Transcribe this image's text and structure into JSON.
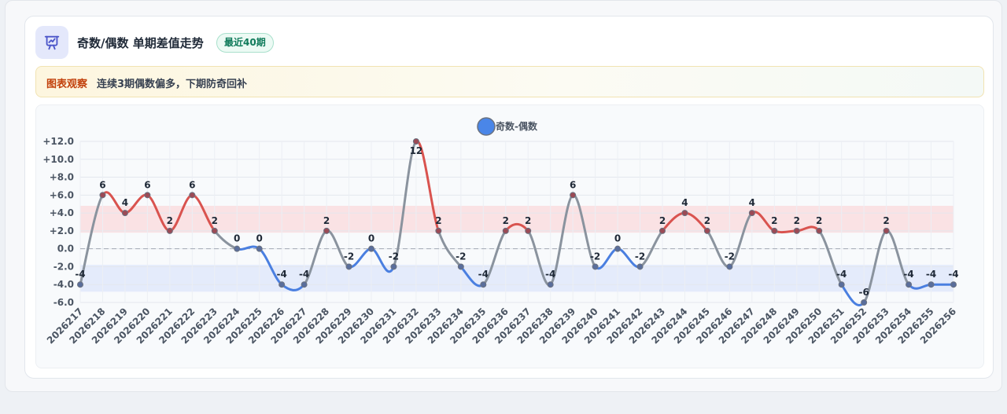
{
  "header": {
    "icon": "chart-presentation-icon",
    "title": "奇数/偶数 单期差值走势",
    "badge": "最近40期"
  },
  "observation": {
    "label": "图表观察",
    "text": "连续3期偶数偏多，下期防奇回补"
  },
  "colors": {
    "positive": "#d9534f",
    "negative": "#4a7fe0",
    "neutral": "#8a939e",
    "positive_band": "#fbd9dc",
    "negative_band": "#dde6fb",
    "legend_dot": "#4a86e8"
  },
  "chart_data": {
    "type": "line",
    "legend": [
      "奇数-偶数"
    ],
    "legend_position": "top-center",
    "grid": true,
    "ylim": [
      -6,
      12
    ],
    "yticks": [
      -6,
      -4,
      -2,
      0,
      2,
      4,
      6,
      8,
      10,
      12
    ],
    "ytick_labels": [
      "-6.0",
      "-4.0",
      "-2.0",
      "0.0",
      "+2.0",
      "+4.0",
      "+6.0",
      "+8.0",
      "+10.0",
      "+12.0"
    ],
    "x": [
      "2026217",
      "2026218",
      "2026219",
      "2026220",
      "2026221",
      "2026222",
      "2026223",
      "2026224",
      "2026225",
      "2026226",
      "2026227",
      "2026228",
      "2026229",
      "2026230",
      "2026231",
      "2026232",
      "2026233",
      "2026234",
      "2026235",
      "2026236",
      "2026237",
      "2026238",
      "2026239",
      "2026240",
      "2026241",
      "2026242",
      "2026243",
      "2026244",
      "2026245",
      "2026246",
      "2026247",
      "2026248",
      "2026249",
      "2026250",
      "2026251",
      "2026252",
      "2026253",
      "2026254",
      "2026255",
      "2026256"
    ],
    "series": [
      {
        "name": "奇数-偶数",
        "values": [
          -4,
          6,
          4,
          6,
          2,
          6,
          2,
          0,
          0,
          -4,
          -4,
          2,
          -2,
          0,
          -2,
          12,
          2,
          -2,
          -4,
          2,
          2,
          -4,
          6,
          -2,
          0,
          -2,
          2,
          4,
          2,
          -2,
          4,
          2,
          2,
          2,
          -4,
          -6,
          2,
          -4,
          -4,
          -4
        ]
      }
    ],
    "bands": [
      {
        "from": 1.8,
        "to": 4.8,
        "color": "positive_band"
      },
      {
        "from": -4.8,
        "to": -1.8,
        "color": "negative_band"
      }
    ],
    "reference_line": 0
  }
}
